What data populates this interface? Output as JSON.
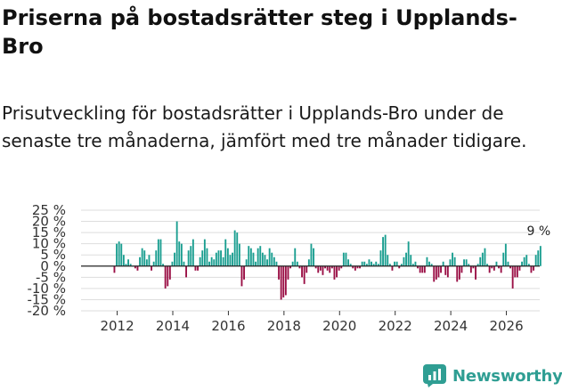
{
  "title": "Priserna på bostadsrätter steg i Upplands-Bro",
  "subtitle": "Prisutveckling för bostadsrätter i Upplands-Bro under de senaste tre månaderna, jämfört med tre månader tidigare.",
  "brand": {
    "name": "Newsworthy"
  },
  "colors": {
    "positive": "#1a9e90",
    "negative": "#9a0f45",
    "grid": "#dddddd",
    "zero": "#222222",
    "brand": "#2f9e93"
  },
  "chart_data": {
    "type": "bar",
    "title": "Priserna på bostadsrätter steg i Upplands-Bro",
    "xlabel": "",
    "ylabel": "",
    "ylim": [
      -20,
      25
    ],
    "x_start": 2011.9,
    "x_step": 0.0833,
    "xlim": [
      2010.7,
      2027.2
    ],
    "y_ticks": [
      -20,
      -15,
      -10,
      -5,
      0,
      5,
      10,
      15,
      20,
      25
    ],
    "y_tick_labels": [
      "-20 %",
      "-15 %",
      "-10 %",
      "-5 %",
      "0 %",
      "5 %",
      "10 %",
      "15 %",
      "20 %",
      "25 %"
    ],
    "x_ticks": [
      2012,
      2014,
      2016,
      2018,
      2020,
      2022,
      2024,
      2026
    ],
    "x_tick_labels": [
      "2012",
      "2014",
      "2016",
      "2018",
      "2020",
      "2022",
      "2024",
      "2026"
    ],
    "annotation": {
      "text": "9 %",
      "value": 9
    },
    "values": [
      -3,
      10,
      11,
      10,
      5,
      1,
      3,
      1,
      0,
      -1,
      -2,
      4,
      8,
      7,
      3,
      5,
      -2,
      2,
      7,
      12,
      12,
      1,
      -10,
      -9,
      -6,
      2,
      6,
      20,
      11,
      10,
      2,
      -5,
      7,
      9,
      12,
      -2,
      -2,
      4,
      7,
      12,
      8,
      2,
      4,
      3,
      6,
      7,
      7,
      4,
      12,
      8,
      5,
      6,
      16,
      15,
      10,
      -9,
      -6,
      3,
      9,
      8,
      6,
      2,
      8,
      9,
      6,
      5,
      3,
      8,
      6,
      4,
      2,
      -6,
      -15,
      -14,
      -13,
      -6,
      -1,
      2,
      8,
      2,
      -1,
      -5,
      -8,
      -3,
      3,
      10,
      8,
      -1,
      -3,
      -2,
      -4,
      -1,
      -2,
      -3,
      -1,
      -6,
      -5,
      -2,
      -1,
      6,
      6,
      3,
      1,
      -1,
      -2,
      -1,
      -1,
      2,
      2,
      1,
      3,
      2,
      1,
      2,
      1,
      7,
      13,
      14,
      5,
      1,
      -2,
      2,
      2,
      -1,
      1,
      4,
      6,
      11,
      5,
      1,
      2,
      -1,
      -3,
      -3,
      -3,
      4,
      2,
      1,
      -7,
      -6,
      -5,
      -3,
      2,
      -4,
      -5,
      3,
      6,
      4,
      -7,
      -6,
      -3,
      3,
      3,
      1,
      -3,
      -1,
      -6,
      1,
      4,
      6,
      8,
      1,
      -3,
      -1,
      -2,
      2,
      -1,
      -3,
      6,
      10,
      2,
      -1,
      -10,
      -5,
      -5,
      -2,
      2,
      4,
      5,
      1,
      -3,
      -2,
      5,
      7,
      9
    ]
  }
}
